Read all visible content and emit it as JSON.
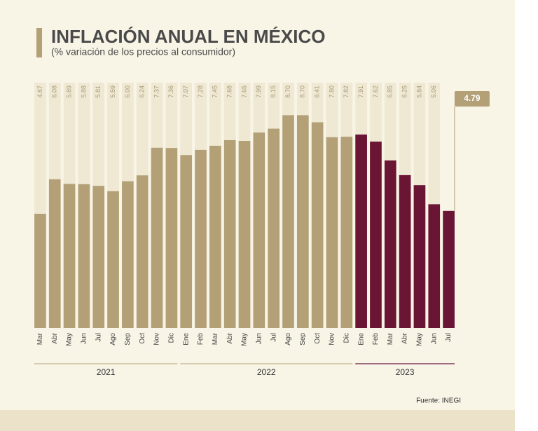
{
  "chart_data": {
    "type": "bar",
    "title": "INFLACIÓN ANUAL EN MÉXICO",
    "subtitle": "(% variación de los precios al consumidor)",
    "source": "Fuente: INEGI",
    "groups": [
      {
        "name": "2021",
        "color": "#b3a077",
        "categories": [
          "Mar",
          "Abr",
          "May",
          "Jun",
          "Jul",
          "Ago",
          "Sep",
          "Oct",
          "Nov",
          "Dic"
        ],
        "values": [
          4.67,
          6.08,
          5.89,
          5.88,
          5.81,
          5.59,
          6.0,
          6.24,
          7.37,
          7.36
        ],
        "value_labels": [
          "4.67",
          "6.08",
          "5.89",
          "5.88",
          "5.81",
          "5.59",
          "6.00",
          "6.24",
          "7.37",
          "7.36"
        ]
      },
      {
        "name": "2022",
        "color": "#b3a077",
        "categories": [
          "Ene",
          "Feb",
          "Mar",
          "Abr",
          "May",
          "Jun",
          "Jul",
          "Ago",
          "Sep",
          "Oct",
          "Nov",
          "Dic"
        ],
        "values": [
          7.07,
          7.28,
          7.45,
          7.68,
          7.65,
          7.99,
          8.15,
          8.7,
          8.7,
          8.41,
          7.8,
          7.82
        ],
        "value_labels": [
          "7.07",
          "7.28",
          "7.45",
          "7.68",
          "7.65",
          "7.99",
          "8.15",
          "8.70",
          "8.70",
          "8.41",
          "7.80",
          "7.82"
        ]
      },
      {
        "name": "2023",
        "color": "#6b1535",
        "categories": [
          "Ene",
          "Feb",
          "Mar",
          "Abr",
          "May",
          "Jun",
          "Jul"
        ],
        "values": [
          7.91,
          7.62,
          6.85,
          6.25,
          5.84,
          5.06,
          4.79
        ],
        "value_labels": [
          "7.91",
          "7.62",
          "6.85",
          "6.25",
          "5.84",
          "5.06",
          "4.79"
        ]
      }
    ]
  }
}
